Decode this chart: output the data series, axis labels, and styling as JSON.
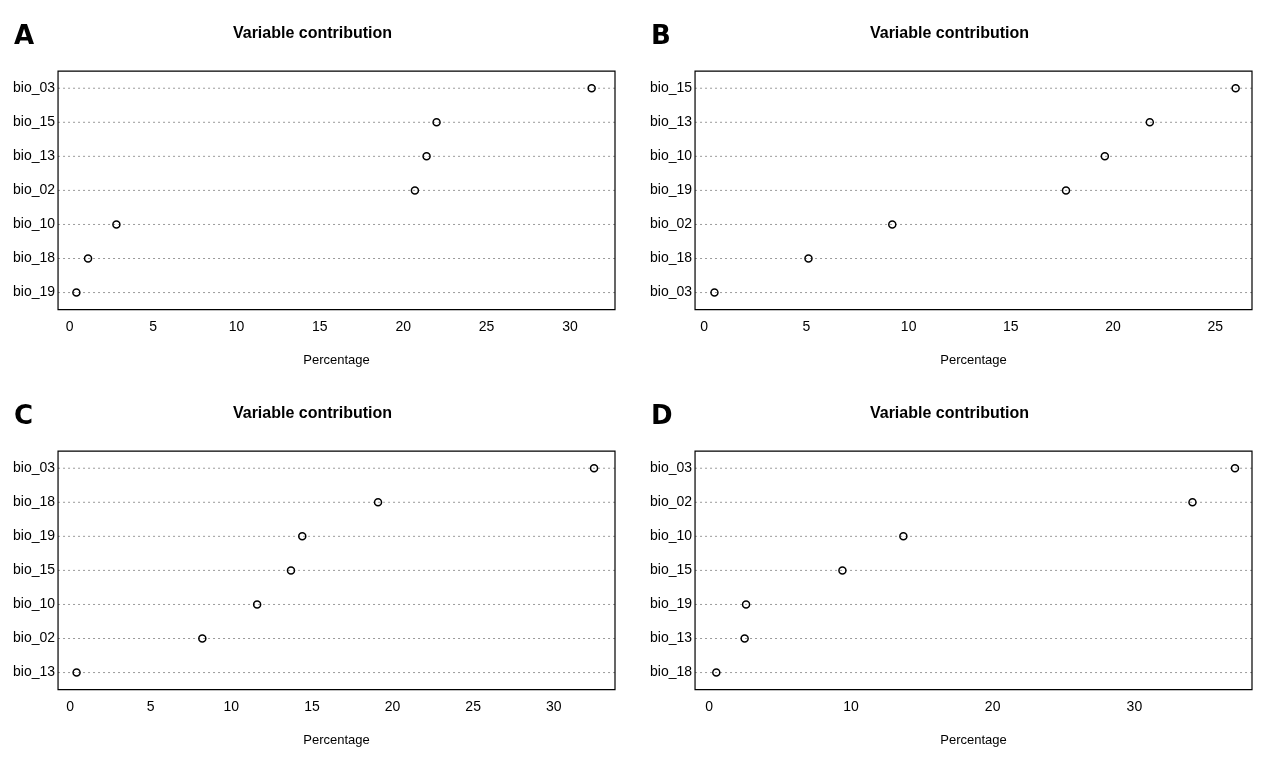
{
  "chart_data": [
    {
      "type": "scatter",
      "orientation": "horizontal",
      "title": "Variable contribution",
      "xlabel": "Percentage",
      "annotations": [
        "A"
      ],
      "categories": [
        "bio_03",
        "bio_15",
        "bio_13",
        "bio_02",
        "bio_10",
        "bio_18",
        "bio_19"
      ],
      "values": [
        31.3,
        22.0,
        21.4,
        20.7,
        2.8,
        1.1,
        0.4
      ],
      "color": "#000000",
      "xlim": [
        -0.7,
        32.7
      ],
      "xticks": [
        0,
        5,
        10,
        15,
        20,
        25,
        30
      ],
      "grid": "y",
      "marker": "circle",
      "legend": false
    },
    {
      "type": "scatter",
      "orientation": "horizontal",
      "title": "Variable contribution",
      "xlabel": "Percentage",
      "annotations": [
        "B"
      ],
      "categories": [
        "bio_15",
        "bio_13",
        "bio_10",
        "bio_19",
        "bio_02",
        "bio_18",
        "bio_03"
      ],
      "values": [
        26.0,
        21.8,
        19.6,
        17.7,
        9.2,
        5.1,
        0.5
      ],
      "color": "#000000",
      "xlim": [
        -0.45,
        26.8
      ],
      "xticks": [
        0,
        5,
        10,
        15,
        20,
        25
      ],
      "grid": "y",
      "marker": "circle",
      "legend": false
    },
    {
      "type": "scatter",
      "orientation": "horizontal",
      "title": "Variable contribution",
      "xlabel": "Percentage",
      "annotations": [
        "C"
      ],
      "categories": [
        "bio_03",
        "bio_18",
        "bio_19",
        "bio_15",
        "bio_10",
        "bio_02",
        "bio_13"
      ],
      "values": [
        32.5,
        19.1,
        14.4,
        13.7,
        11.6,
        8.2,
        0.4
      ],
      "color": "#000000",
      "xlim": [
        -0.75,
        33.8
      ],
      "xticks": [
        0,
        5,
        10,
        15,
        20,
        25,
        30
      ],
      "grid": "y",
      "marker": "circle",
      "legend": false
    },
    {
      "type": "scatter",
      "orientation": "horizontal",
      "title": "Variable contribution",
      "xlabel": "Percentage",
      "annotations": [
        "D"
      ],
      "categories": [
        "bio_03",
        "bio_02",
        "bio_10",
        "bio_15",
        "bio_19",
        "bio_13",
        "bio_18"
      ],
      "values": [
        37.1,
        34.1,
        13.7,
        9.4,
        2.6,
        2.5,
        0.5
      ],
      "color": "#000000",
      "xlim": [
        -1.0,
        38.3
      ],
      "xticks": [
        0,
        10,
        20,
        30
      ],
      "grid": "y",
      "marker": "circle",
      "legend": false
    }
  ]
}
